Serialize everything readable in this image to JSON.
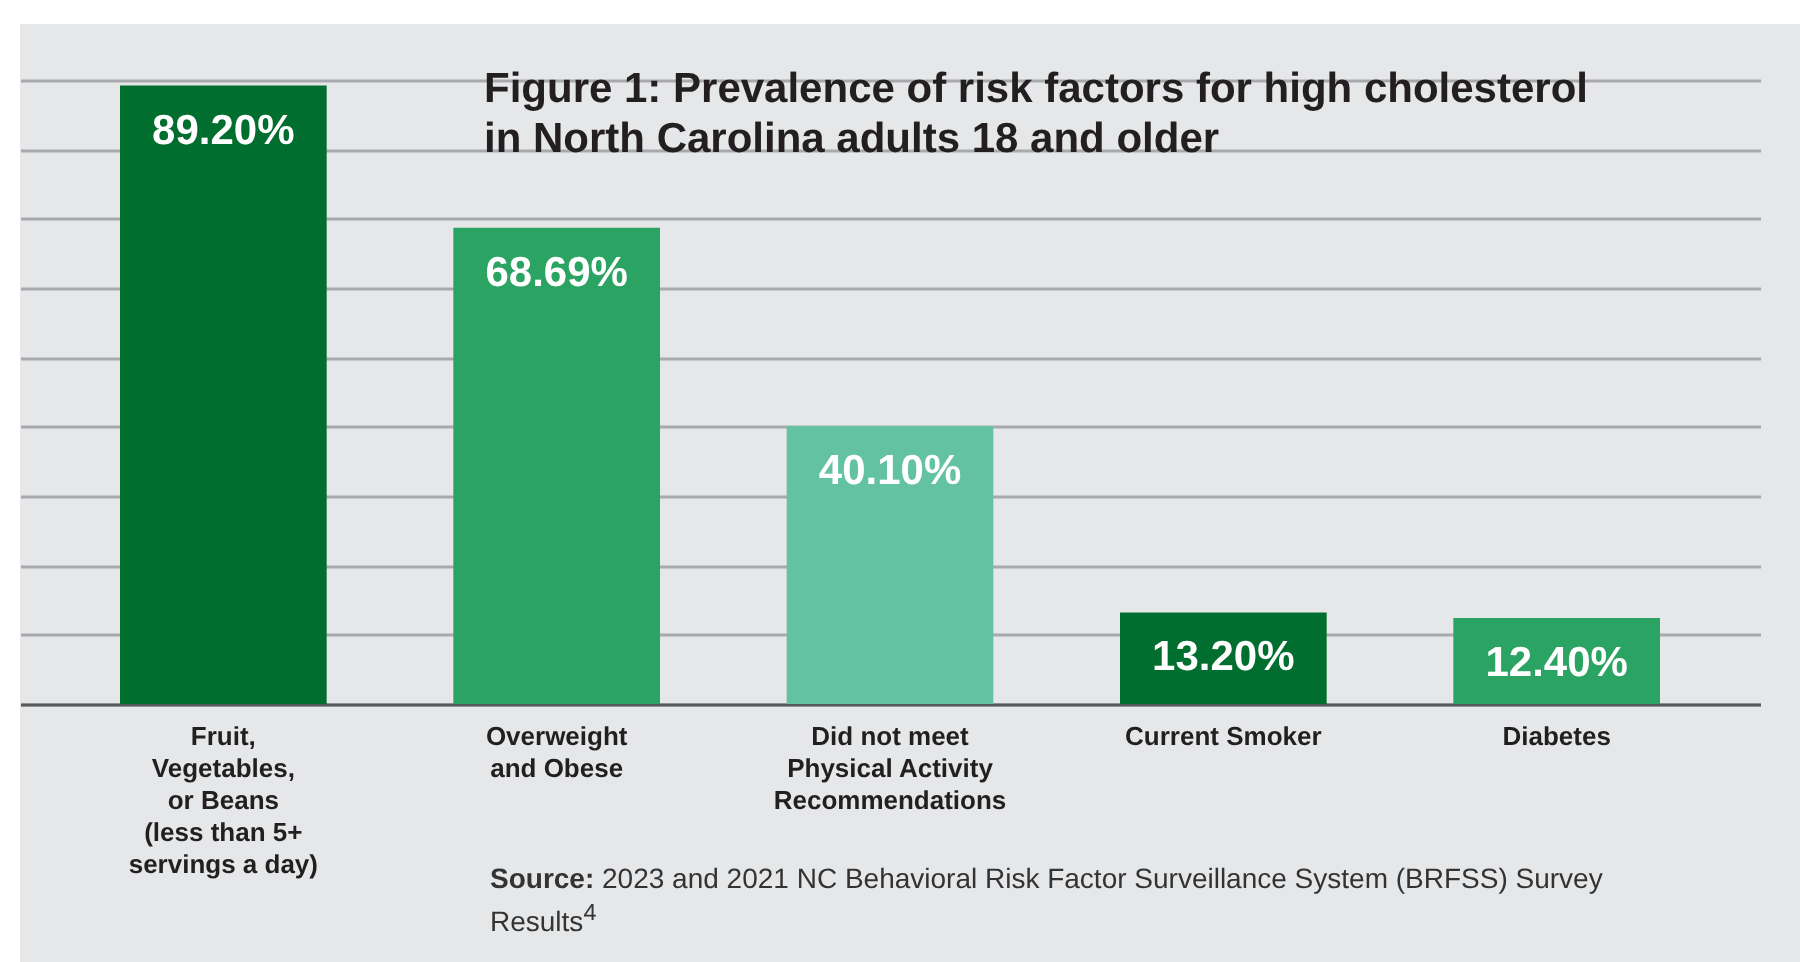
{
  "chart_data": {
    "type": "bar",
    "title": "Figure 1: Prevalence of risk factors for high cholesterol in North Carolina adults 18 and older",
    "categories": [
      "Fruit,\nVegetables,\nor Beans\n(less than 5+\nservings a day)",
      "Overweight\nand Obese",
      "Did not meet\nPhysical Activity\nRecommendations",
      "Current Smoker",
      "Diabetes"
    ],
    "values": [
      89.2,
      68.69,
      40.1,
      13.2,
      12.4
    ],
    "colors": [
      "#006e2e",
      "#2ba362",
      "#63c2a2",
      "#006e2e",
      "#2ba362"
    ],
    "value_labels": [
      "89.20%",
      "68.69%",
      "40.10%",
      "13.20%",
      "12.40%"
    ],
    "ylim": [
      0,
      90
    ],
    "yticks": [
      {
        "value": 0,
        "label": null
      },
      {
        "value": 10,
        "label": null
      },
      {
        "value": 20,
        "label": null
      },
      {
        "value": 30,
        "label": null
      },
      {
        "value": 40,
        "label": null
      },
      {
        "value": 50,
        "label": null
      },
      {
        "value": 60,
        "label": null
      },
      {
        "value": 70,
        "label": null
      },
      {
        "value": 80,
        "label": null
      },
      {
        "value": 90,
        "label": null
      }
    ],
    "grid": "y",
    "tick_labels": "x",
    "annotations": [
      "Source: 2023 and 2021 NC Behavioral Risk Factor Surveillance System (BRFSS) Survey Results$^{4}$"
    ]
  }
}
